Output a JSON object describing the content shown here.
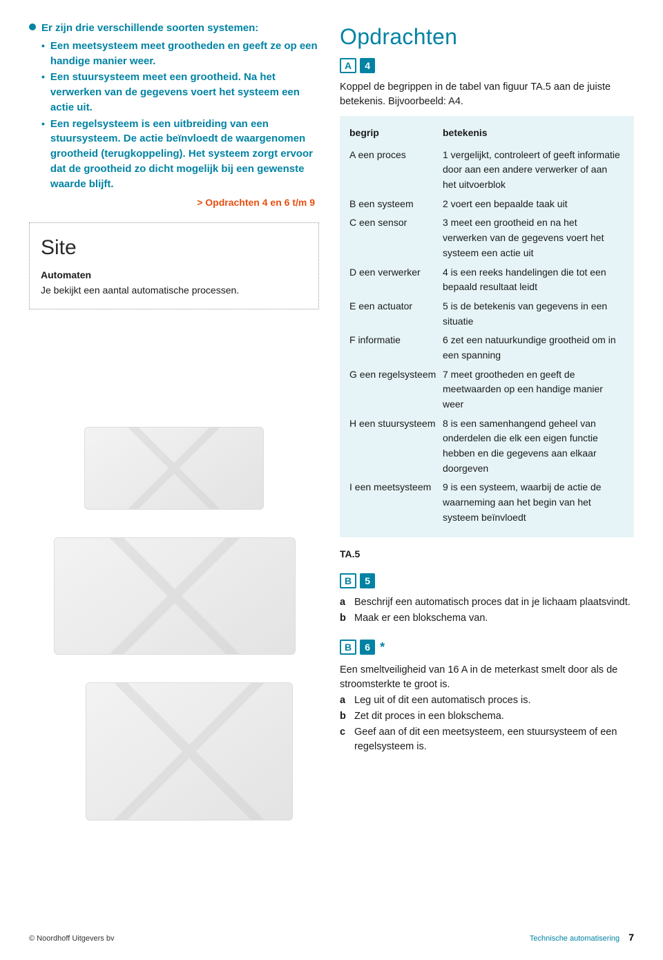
{
  "colors": {
    "accent": "#0083a3",
    "orange": "#e84e10",
    "tableBg": "#e6f4f7",
    "text": "#1a1a1a"
  },
  "left": {
    "lead": "Er zijn drie verschillende soorten systemen:",
    "bullets": [
      "Een meetsysteem meet grootheden en geeft ze op een handige manier weer.",
      "Een stuursysteem meet een grootheid. Na het verwerken van de gegevens voert het systeem een actie uit.",
      "Een regelsysteem is een uitbreiding van een stuursysteem. De actie beïnvloedt de waargenomen grootheid (terugkoppeling). Het systeem zorgt ervoor dat de grootheid zo dicht mogelijk bij een gewenste waarde blijft."
    ],
    "link": "> Opdrachten 4 en 6 t/m 9",
    "site": {
      "title": "Site",
      "subtitle": "Automaten",
      "body": "Je bekijkt een aantal automatische processen."
    }
  },
  "right": {
    "heading": "Opdrachten",
    "ex4": {
      "letter": "A",
      "num": "4",
      "intro": "Koppel de begrippen in de tabel van figuur TA.5 aan de juiste betekenis. Bijvoorbeeld: A4.",
      "caption": "TA.5",
      "headers": {
        "c1": "begrip",
        "c2": "betekenis"
      },
      "rows": [
        {
          "c1": "A een proces",
          "c2": "1 vergelijkt, controleert of geeft informatie door aan een andere verwerker of aan het uitvoerblok"
        },
        {
          "c1": "B een systeem",
          "c2": "2 voert een bepaalde taak uit"
        },
        {
          "c1": "C een sensor",
          "c2": "3 meet een grootheid en na het verwerken van de gegevens voert het systeem een actie uit"
        },
        {
          "c1": "D een verwerker",
          "c2": "4 is een reeks handelingen die tot een bepaald resultaat leidt"
        },
        {
          "c1": "E een actuator",
          "c2": "5 is de betekenis van gegevens in een situatie"
        },
        {
          "c1": "F informatie",
          "c2": "6 zet een natuurkundige grootheid om in een spanning"
        },
        {
          "c1": "G een regelsysteem",
          "c2": "7 meet grootheden en geeft de meetwaarden op een handige manier weer"
        },
        {
          "c1": "H een stuursysteem",
          "c2": "8 is een samenhangend geheel van onderdelen die elk een eigen functie hebben en die gegevens aan elkaar doorgeven"
        },
        {
          "c1": "I een meetsysteem",
          "c2": "9 is een systeem, waarbij de actie de waarneming aan het begin van het systeem beïnvloedt"
        }
      ]
    },
    "ex5": {
      "letter": "B",
      "num": "5",
      "a": "Beschrijf een automatisch proces dat in je lichaam plaatsvindt.",
      "b": "Maak er een blokschema van."
    },
    "ex6": {
      "letter": "B",
      "num": "6",
      "star": "*",
      "intro": "Een smeltveiligheid van 16 A in de meterkast smelt door als de stroomsterkte te groot is.",
      "a": "Leg uit of dit een automatisch proces is.",
      "b": "Zet dit proces in een blokschema.",
      "c": "Geef aan of dit een meetsysteem, een stuursysteem of een regelsysteem is."
    }
  },
  "footer": {
    "left": "© Noordhoff Uitgevers bv",
    "rightLabel": "Technische automatisering",
    "page": "7"
  }
}
